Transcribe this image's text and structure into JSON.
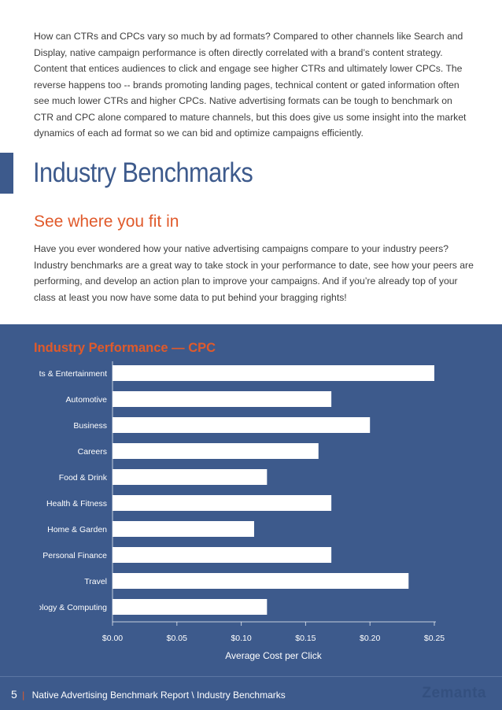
{
  "intro_paragraph": "How can CTRs and CPCs vary so much by ad formats? Compared to other channels like Search and Display, native campaign performance is often directly correlated with a brand’s content strategy. Content that entices audiences to click and engage see higher CTRs and ultimately lower CPCs. The reverse happens too -- brands promoting landing pages, technical content or gated information often see much lower CTRs and higher CPCs. Native advertising formats can be tough to benchmark on CTR and CPC alone compared to mature channels, but this does give us some insight into the market dynamics of each ad format so we can bid and optimize campaigns efficiently.",
  "section": {
    "title": "Industry Benchmarks",
    "subtitle": "See where you fit in",
    "paragraph": "Have you ever wondered how your native advertising campaigns compare to your industry peers? Industry benchmarks are a great way to take stock in your performance to date, see how your peers are performing, and develop an action plan to improve your campaigns. And if you’re already top of your class at least you now have some data to put behind your bragging rights!"
  },
  "colors": {
    "accent_blue": "#3d5a8c",
    "accent_orange": "#e05a2b",
    "bar_fill": "#ffffff"
  },
  "chart_data": {
    "type": "bar",
    "orientation": "horizontal",
    "title": "Industry Performance — CPC",
    "xlabel": "Average Cost per Click",
    "ylabel": "",
    "xlim": [
      0,
      0.25
    ],
    "tick_labels": [
      "$0.00",
      "$0.05",
      "$0.10",
      "$0.15",
      "$0.20",
      "$0.25"
    ],
    "tick_values": [
      0,
      0.05,
      0.1,
      0.15,
      0.2,
      0.25
    ],
    "categories": [
      "Arts & Entertainment",
      "Automotive",
      "Business",
      "Careers",
      "Food & Drink",
      "Health & Fitness",
      "Home & Garden",
      "Personal Finance",
      "Travel",
      "Technology & Computing"
    ],
    "values": [
      0.25,
      0.17,
      0.2,
      0.16,
      0.12,
      0.17,
      0.11,
      0.17,
      0.23,
      0.12
    ],
    "grid": false,
    "legend": "none"
  },
  "footer": {
    "page_number": "5",
    "separator": "|",
    "text": "Native Advertising Benchmark Report \\ Industry Benchmarks",
    "brand": "Zemanta"
  }
}
